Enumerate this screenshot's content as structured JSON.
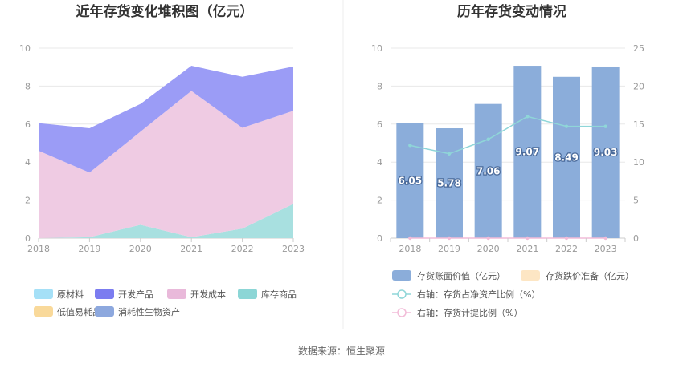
{
  "source": "数据来源：恒生聚源",
  "chart_data": [
    {
      "type": "area",
      "title": "近年存货变化堆积图（亿元）",
      "x": [
        "2018",
        "2019",
        "2020",
        "2021",
        "2022",
        "2023"
      ],
      "ylim": [
        0,
        10
      ],
      "yticks": [
        "0",
        "2",
        "4",
        "6",
        "8",
        "10"
      ],
      "stacked": true,
      "series": [
        {
          "name": "库存商品",
          "color": "#a8e0e0",
          "values": [
            0.0,
            0.05,
            0.7,
            0.05,
            0.5,
            1.8
          ]
        },
        {
          "name": "开发成本",
          "color": "#efcbe3",
          "values": [
            4.6,
            3.4,
            4.9,
            7.7,
            5.3,
            4.9
          ]
        },
        {
          "name": "开发产品",
          "color": "#9b9cf6",
          "values": [
            1.45,
            2.33,
            1.46,
            1.32,
            2.69,
            2.33
          ]
        }
      ],
      "legend": [
        {
          "name": "原材料",
          "color": "#a5e0f7"
        },
        {
          "name": "开发产品",
          "color": "#7b7cf0"
        },
        {
          "name": "开发成本",
          "color": "#e9b9da"
        },
        {
          "name": "库存商品",
          "color": "#8cd6d6"
        },
        {
          "name": "低值易耗品",
          "color": "#f9d99a"
        },
        {
          "name": "消耗性生物资产",
          "color": "#8da8de"
        }
      ],
      "grid": true
    },
    {
      "type": "bar",
      "title": "历年存货变动情况",
      "categories": [
        "2018",
        "2019",
        "2020",
        "2021",
        "2022",
        "2023"
      ],
      "ylim": [
        0,
        10
      ],
      "yticks_left": [
        "0",
        "2",
        "4",
        "6",
        "8",
        "10"
      ],
      "y2lim": [
        0,
        25
      ],
      "yticks_right": [
        "0",
        "5",
        "10",
        "15",
        "20",
        "25"
      ],
      "series": [
        {
          "name": "存货账面价值（亿元）",
          "kind": "bar",
          "axis": "left",
          "color": "#8badda",
          "values": [
            6.05,
            5.78,
            7.06,
            9.07,
            8.49,
            9.03
          ],
          "labels": [
            "6.05",
            "5.78",
            "7.06",
            "9.07",
            "8.49",
            "9.03"
          ]
        },
        {
          "name": "存货跌价准备（亿元）",
          "kind": "bar",
          "axis": "left",
          "color": "#fde6c4",
          "values": [
            0,
            0,
            0,
            0,
            0,
            0
          ]
        },
        {
          "name": "右轴：存货占净资产比例（%）",
          "kind": "line",
          "axis": "right",
          "color": "#8fd6d8",
          "values": [
            12.2,
            11.1,
            13.0,
            16.0,
            14.7,
            14.7
          ]
        },
        {
          "name": "右轴：存货计提比例（%）",
          "kind": "line",
          "axis": "right",
          "color": "#f2bcd8",
          "values": [
            0,
            0,
            0,
            0,
            0,
            0
          ]
        }
      ],
      "grid": true
    }
  ]
}
